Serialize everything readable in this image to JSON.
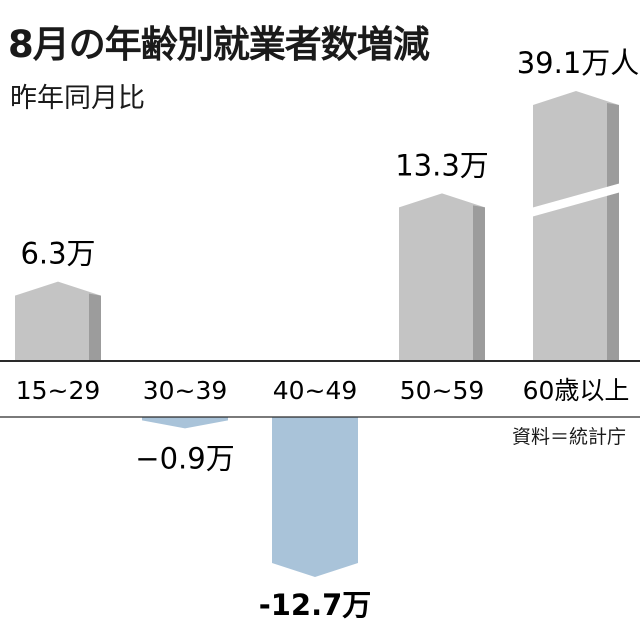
{
  "title": "8月の年齢別就業者数増減",
  "subtitle": "昨年同月比",
  "source": "資料＝統計庁",
  "chart_data": {
    "type": "bar",
    "title": "8月の年齢別就業者数増減",
    "subtitle": "昨年同月比",
    "unit": "万人",
    "categories": [
      "15~29",
      "30~39",
      "40~49",
      "50~59",
      "60歳以上"
    ],
    "values": [
      6.3,
      -0.9,
      -12.7,
      13.3,
      39.1
    ],
    "value_labels": [
      "6.3万",
      "−0.9万",
      "-12.7万",
      "13.3万",
      "39.1万人"
    ],
    "axis_broken_category": "60歳以上",
    "colors": {
      "positive": "#c4c4c4",
      "negative": "#a9c3d9"
    }
  }
}
